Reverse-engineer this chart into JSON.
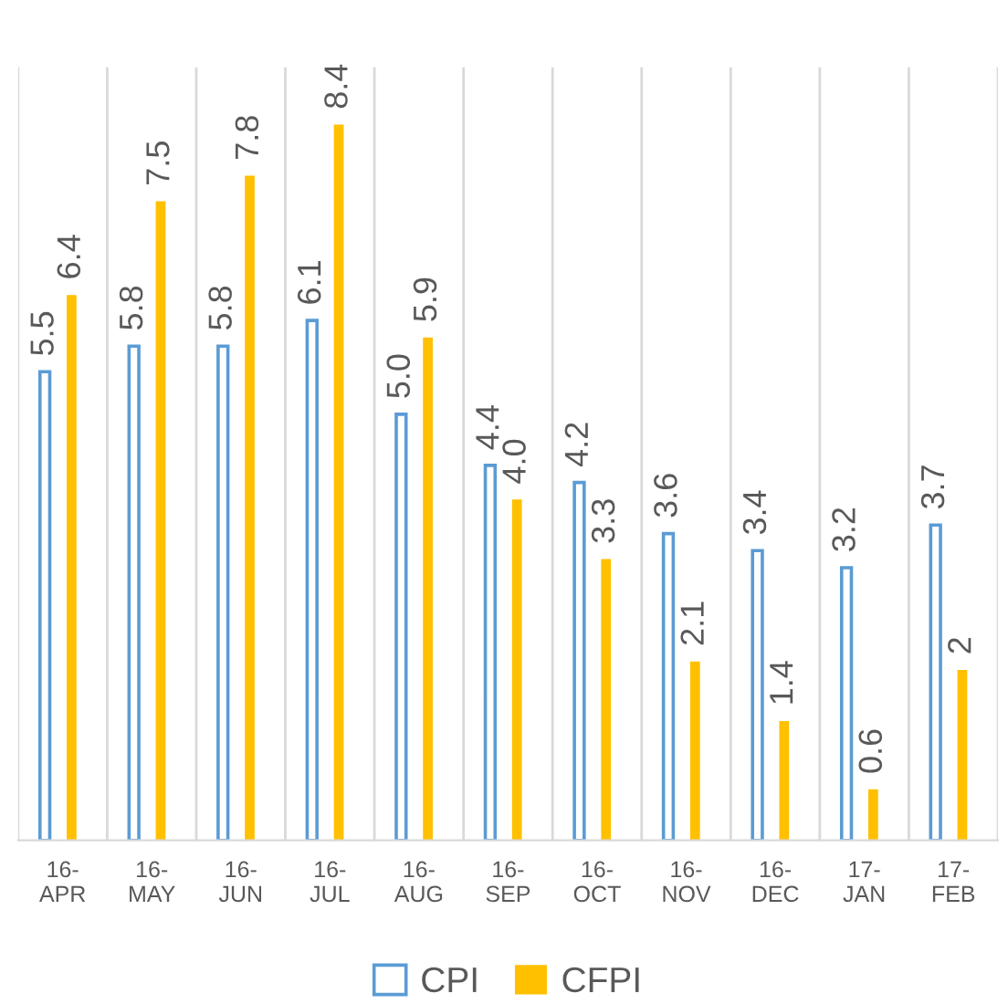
{
  "chart_data": {
    "type": "bar",
    "categories": [
      "16-APR",
      "16-MAY",
      "16-JUN",
      "16-JUL",
      "16-AUG",
      "16-SEP",
      "16-OCT",
      "16-NOV",
      "16-DEC",
      "17-JAN",
      "17-FEB"
    ],
    "series": [
      {
        "name": "CPI",
        "color": "#5b9bd5",
        "values": [
          5.5,
          5.8,
          5.8,
          6.1,
          5.0,
          4.4,
          4.2,
          3.6,
          3.4,
          3.2,
          3.7
        ],
        "value_labels": [
          "5.5",
          "5.8",
          "5.8",
          "6.1",
          "5.0",
          "4.4",
          "4.2",
          "3.6",
          "3.4",
          "3.2",
          "3.7"
        ]
      },
      {
        "name": "CFPI",
        "color": "#ffc000",
        "values": [
          6.4,
          7.5,
          7.8,
          8.4,
          5.9,
          4.0,
          3.3,
          2.1,
          1.4,
          0.6,
          2
        ],
        "value_labels": [
          "6.4",
          "7.5",
          "7.8",
          "8.4",
          "5.9",
          "4.0",
          "3.3",
          "2.1",
          "1.4",
          "0.6",
          "2"
        ]
      }
    ],
    "grid": "x",
    "legend": "bottom"
  }
}
